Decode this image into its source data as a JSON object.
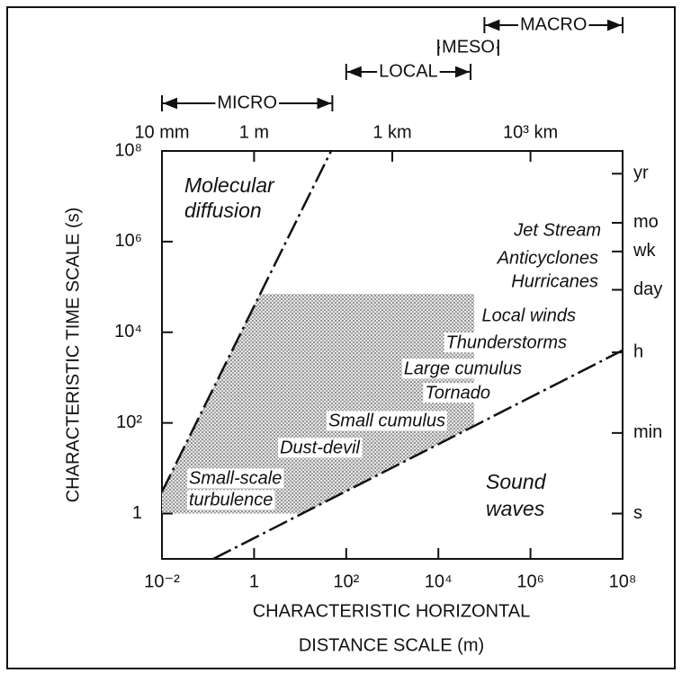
{
  "chart_data": {
    "type": "line",
    "x_label": [
      "CHARACTERISTIC HORIZONTAL",
      "DISTANCE SCALE (m)"
    ],
    "y_label": "CHARACTERISTIC TIME SCALE (s)",
    "log_x": true,
    "log_y": true,
    "xlim": [
      0.01,
      100000000
    ],
    "ylim": [
      0.1,
      100000000
    ],
    "xticks": [
      {
        "value": 0.01,
        "label": "10⁻²"
      },
      1,
      {
        "value": 100,
        "label": "10²"
      },
      {
        "value": 10000,
        "label": "10⁴"
      },
      {
        "value": 1000000,
        "label": "10⁶"
      },
      {
        "value": 100000000,
        "label": "10⁸"
      }
    ],
    "yticks": [
      1,
      {
        "value": 100,
        "label": "10²"
      },
      {
        "value": 10000,
        "label": "10⁴"
      },
      {
        "value": 1000000,
        "label": "10⁶"
      },
      {
        "value": 100000000,
        "label": "10⁸"
      }
    ],
    "x2ticks": [
      {
        "value": 0.01,
        "label": "10 mm"
      },
      {
        "value": 1,
        "label": "1 m"
      },
      {
        "value": 1000,
        "label": "1 km"
      },
      {
        "value": 1000000,
        "label": "10³ km"
      }
    ],
    "y2ticks": [
      {
        "value": 31500000,
        "label": "yr"
      },
      {
        "value": 2600000,
        "label": "mo"
      },
      {
        "value": 605000,
        "label": "wk"
      },
      {
        "value": 86400,
        "label": "day"
      },
      {
        "value": 3600,
        "label": "h"
      },
      {
        "value": 60,
        "label": "min"
      },
      {
        "value": 1,
        "label": "s"
      }
    ],
    "series": [
      {
        "name": [
          "Molecular",
          "diffusion"
        ],
        "x": [
          0.01,
          47
        ],
        "values": [
          3,
          100000000
        ]
      },
      {
        "name": [
          "Sound",
          "waves"
        ],
        "x": [
          0.13,
          100000000
        ],
        "values": [
          0.1,
          4000
        ]
      }
    ],
    "shaded_region": {
      "xlim": [
        0.01,
        60000
      ],
      "ylim": [
        1,
        70000
      ]
    },
    "phenomena": [
      "Jet Stream",
      "Anticyclones",
      "Hurricanes",
      "Local winds",
      "Thunderstorms",
      "Large cumulus",
      "Tornado",
      "Small cumulus",
      "Dust-devil",
      [
        "Small-scale",
        "turbulence"
      ]
    ],
    "scales": [
      {
        "name": "MICRO",
        "range": [
          0.01,
          50
        ]
      },
      {
        "name": "LOCAL",
        "range": [
          100,
          50000
        ]
      },
      {
        "name": "MESO",
        "range": [
          10000,
          200000
        ]
      },
      {
        "name": "MACRO",
        "range": [
          100000,
          100000000
        ]
      }
    ]
  }
}
